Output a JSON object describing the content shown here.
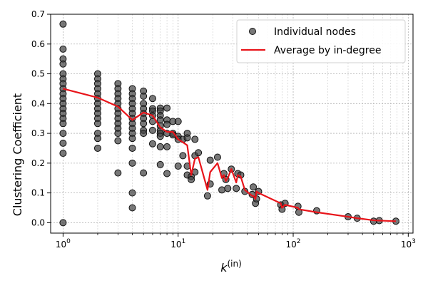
{
  "chart_data": {
    "type": "scatter",
    "title": "",
    "xlabel_base": "k",
    "xlabel_sup": "(in)",
    "ylabel": "Clustering Coefficient",
    "xscale": "log",
    "xlim": [
      0.78,
      1100
    ],
    "ylim": [
      -0.035,
      0.7
    ],
    "grid": true,
    "legend_position": "top-right",
    "x_ticks": [
      {
        "value": 1,
        "base": "10",
        "exp": "0"
      },
      {
        "value": 10,
        "base": "10",
        "exp": "1"
      },
      {
        "value": 100,
        "base": "10",
        "exp": "2"
      },
      {
        "value": 1000,
        "base": "10",
        "exp": "3"
      }
    ],
    "y_ticks": [
      {
        "value": 0.0,
        "label": "0.0"
      },
      {
        "value": 0.1,
        "label": "0.1"
      },
      {
        "value": 0.2,
        "label": "0.2"
      },
      {
        "value": 0.3,
        "label": "0.3"
      },
      {
        "value": 0.4,
        "label": "0.4"
      },
      {
        "value": 0.5,
        "label": "0.5"
      },
      {
        "value": 0.6,
        "label": "0.6"
      },
      {
        "value": 0.7,
        "label": "0.7"
      }
    ],
    "series": [
      {
        "name": "Individual nodes",
        "kind": "scatter",
        "color": "#404040",
        "points": [
          [
            1,
            0.667
          ],
          [
            1,
            0.583
          ],
          [
            1,
            0.55
          ],
          [
            1,
            0.533
          ],
          [
            1,
            0.5
          ],
          [
            1,
            0.483
          ],
          [
            1,
            0.467
          ],
          [
            1,
            0.45
          ],
          [
            1,
            0.433
          ],
          [
            1,
            0.417
          ],
          [
            1,
            0.4
          ],
          [
            1,
            0.383
          ],
          [
            1,
            0.367
          ],
          [
            1,
            0.35
          ],
          [
            1,
            0.333
          ],
          [
            1,
            0.3
          ],
          [
            1,
            0.267
          ],
          [
            1,
            0.233
          ],
          [
            1,
            0.0
          ],
          [
            2,
            0.5
          ],
          [
            2,
            0.483
          ],
          [
            2,
            0.467
          ],
          [
            2,
            0.45
          ],
          [
            2,
            0.433
          ],
          [
            2,
            0.417
          ],
          [
            2,
            0.4
          ],
          [
            2,
            0.383
          ],
          [
            2,
            0.367
          ],
          [
            2,
            0.35
          ],
          [
            2,
            0.333
          ],
          [
            2,
            0.3
          ],
          [
            2,
            0.283
          ],
          [
            2,
            0.25
          ],
          [
            3,
            0.467
          ],
          [
            3,
            0.45
          ],
          [
            3,
            0.433
          ],
          [
            3,
            0.417
          ],
          [
            3,
            0.4
          ],
          [
            3,
            0.383
          ],
          [
            3,
            0.367
          ],
          [
            3,
            0.35
          ],
          [
            3,
            0.333
          ],
          [
            3,
            0.317
          ],
          [
            3,
            0.3
          ],
          [
            3,
            0.275
          ],
          [
            3,
            0.167
          ],
          [
            4,
            0.45
          ],
          [
            4,
            0.433
          ],
          [
            4,
            0.417
          ],
          [
            4,
            0.4
          ],
          [
            4,
            0.383
          ],
          [
            4,
            0.367
          ],
          [
            4,
            0.35
          ],
          [
            4,
            0.333
          ],
          [
            4,
            0.317
          ],
          [
            4,
            0.3
          ],
          [
            4,
            0.283
          ],
          [
            4,
            0.25
          ],
          [
            4,
            0.2
          ],
          [
            4,
            0.1
          ],
          [
            4,
            0.05
          ],
          [
            5,
            0.442
          ],
          [
            5,
            0.425
          ],
          [
            5,
            0.4
          ],
          [
            5,
            0.383
          ],
          [
            5,
            0.367
          ],
          [
            5,
            0.35
          ],
          [
            5,
            0.333
          ],
          [
            5,
            0.31
          ],
          [
            5,
            0.3
          ],
          [
            5,
            0.167
          ],
          [
            6,
            0.417
          ],
          [
            6,
            0.383
          ],
          [
            6,
            0.375
          ],
          [
            6,
            0.36
          ],
          [
            6,
            0.34
          ],
          [
            6,
            0.31
          ],
          [
            6,
            0.265
          ],
          [
            7,
            0.385
          ],
          [
            7,
            0.375
          ],
          [
            7,
            0.36
          ],
          [
            7,
            0.345
          ],
          [
            7,
            0.325
          ],
          [
            7,
            0.31
          ],
          [
            7,
            0.3
          ],
          [
            7,
            0.29
          ],
          [
            7,
            0.255
          ],
          [
            7,
            0.195
          ],
          [
            8,
            0.385
          ],
          [
            8,
            0.345
          ],
          [
            8,
            0.33
          ],
          [
            8,
            0.3
          ],
          [
            8,
            0.255
          ],
          [
            8,
            0.165
          ],
          [
            9,
            0.34
          ],
          [
            9,
            0.3
          ],
          [
            9,
            0.295
          ],
          [
            10,
            0.34
          ],
          [
            10,
            0.29
          ],
          [
            10,
            0.28
          ],
          [
            10,
            0.19
          ],
          [
            11,
            0.28
          ],
          [
            11,
            0.225
          ],
          [
            12,
            0.3
          ],
          [
            12,
            0.285
          ],
          [
            12,
            0.19
          ],
          [
            12,
            0.16
          ],
          [
            13,
            0.155
          ],
          [
            13,
            0.145
          ],
          [
            14,
            0.28
          ],
          [
            14,
            0.225
          ],
          [
            14,
            0.17
          ],
          [
            15,
            0.235
          ],
          [
            18,
            0.09
          ],
          [
            19,
            0.21
          ],
          [
            19,
            0.13
          ],
          [
            22,
            0.22
          ],
          [
            24,
            0.11
          ],
          [
            25,
            0.165
          ],
          [
            26,
            0.145
          ],
          [
            27,
            0.115
          ],
          [
            29,
            0.18
          ],
          [
            32,
            0.115
          ],
          [
            33,
            0.165
          ],
          [
            35,
            0.16
          ],
          [
            38,
            0.105
          ],
          [
            44,
            0.095
          ],
          [
            45,
            0.12
          ],
          [
            47,
            0.065
          ],
          [
            48,
            0.08
          ],
          [
            50,
            0.105
          ],
          [
            78,
            0.06
          ],
          [
            80,
            0.045
          ],
          [
            85,
            0.065
          ],
          [
            110,
            0.055
          ],
          [
            112,
            0.035
          ],
          [
            160,
            0.04
          ],
          [
            300,
            0.02
          ],
          [
            360,
            0.015
          ],
          [
            500,
            0.005
          ],
          [
            560,
            0.007
          ],
          [
            780,
            0.005
          ]
        ]
      },
      {
        "name": "Average by in-degree",
        "kind": "line",
        "color": "#e8141a",
        "points": [
          [
            1,
            0.45
          ],
          [
            2,
            0.42
          ],
          [
            3,
            0.39
          ],
          [
            4,
            0.345
          ],
          [
            5,
            0.37
          ],
          [
            6,
            0.36
          ],
          [
            7,
            0.32
          ],
          [
            8,
            0.305
          ],
          [
            9,
            0.305
          ],
          [
            10,
            0.28
          ],
          [
            11,
            0.27
          ],
          [
            12,
            0.26
          ],
          [
            13,
            0.16
          ],
          [
            14,
            0.215
          ],
          [
            15,
            0.22
          ],
          [
            18,
            0.11
          ],
          [
            19,
            0.17
          ],
          [
            22,
            0.2
          ],
          [
            24,
            0.15
          ],
          [
            25,
            0.16
          ],
          [
            26,
            0.14
          ],
          [
            27,
            0.15
          ],
          [
            29,
            0.18
          ],
          [
            32,
            0.135
          ],
          [
            33,
            0.16
          ],
          [
            35,
            0.155
          ],
          [
            38,
            0.11
          ],
          [
            44,
            0.09
          ],
          [
            45,
            0.09
          ],
          [
            47,
            0.08
          ],
          [
            48,
            0.105
          ],
          [
            50,
            0.1
          ],
          [
            78,
            0.065
          ],
          [
            80,
            0.05
          ],
          [
            85,
            0.06
          ],
          [
            110,
            0.05
          ],
          [
            112,
            0.045
          ],
          [
            160,
            0.035
          ],
          [
            300,
            0.02
          ],
          [
            360,
            0.015
          ],
          [
            500,
            0.008
          ],
          [
            560,
            0.007
          ],
          [
            780,
            0.005
          ]
        ]
      }
    ]
  }
}
